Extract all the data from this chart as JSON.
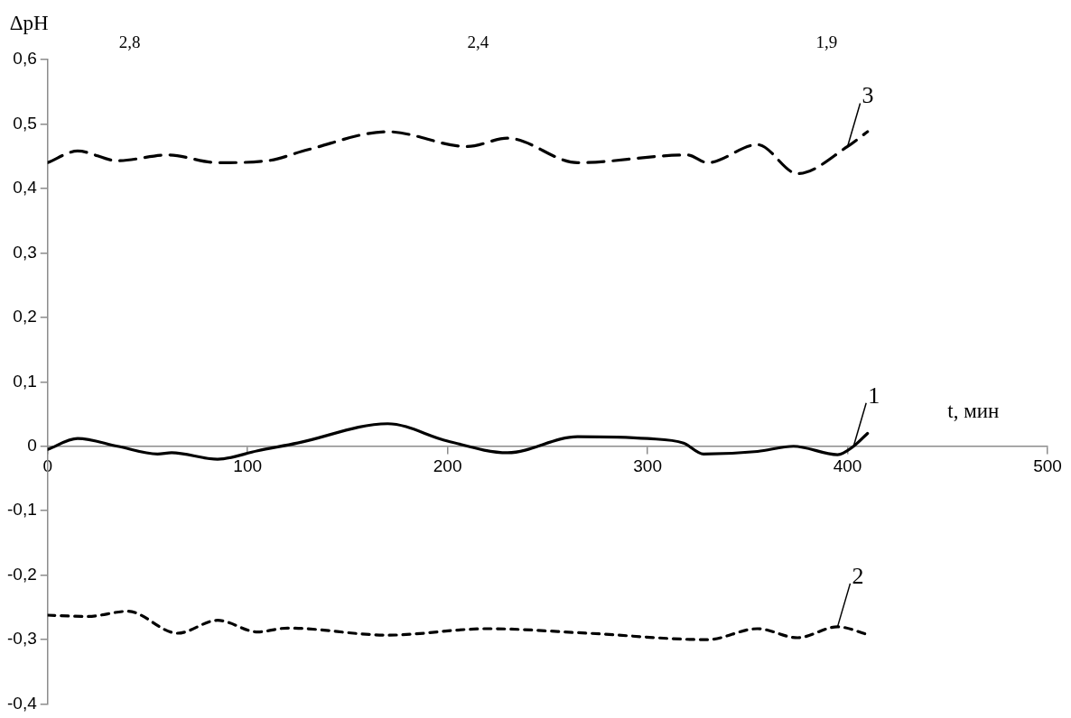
{
  "chart_data": {
    "type": "line",
    "xlabel": "t, мин",
    "ylabel": "ΔpH",
    "xlim": [
      0,
      500
    ],
    "xticks": [
      0,
      100,
      200,
      300,
      400,
      500
    ],
    "ylim": [
      -0.4,
      0.6
    ],
    "yticks": [
      {
        "value": -0.4,
        "label": "-0,4"
      },
      {
        "value": -0.3,
        "label": "-0,3"
      },
      {
        "value": -0.2,
        "label": "-0,2"
      },
      {
        "value": -0.1,
        "label": "-0,1"
      },
      {
        "value": 0,
        "label": "0"
      },
      {
        "value": 0.1,
        "label": "0,1"
      },
      {
        "value": 0.2,
        "label": "0,2"
      },
      {
        "value": 0.3,
        "label": "0,3"
      },
      {
        "value": 0.4,
        "label": "0,4"
      },
      {
        "value": 0.5,
        "label": "0,5"
      },
      {
        "value": 0.6,
        "label": "0,6"
      }
    ],
    "annotations": [
      "2,8",
      "2,4",
      "1,9"
    ],
    "grid": false,
    "legend": false,
    "marker": "none",
    "series": [
      {
        "name": "1",
        "color": "#000000",
        "line_style": "solid",
        "x": [
          0,
          15,
          35,
          55,
          62,
          85,
          105,
          125,
          170,
          200,
          230,
          265,
          300,
          318,
          328,
          355,
          373,
          395,
          403,
          410
        ],
        "values": [
          -0.005,
          0.012,
          0,
          -0.012,
          -0.01,
          -0.02,
          -0.007,
          0.005,
          0.035,
          0.008,
          -0.01,
          0.015,
          0.012,
          0.005,
          -0.012,
          -0.008,
          0,
          -0.013,
          0,
          0.02
        ]
      },
      {
        "name": "2",
        "color": "#000000",
        "line_style": "dotted",
        "x": [
          0,
          20,
          40,
          65,
          85,
          105,
          120,
          170,
          220,
          270,
          330,
          355,
          375,
          395,
          410
        ],
        "values": [
          -0.262,
          -0.264,
          -0.256,
          -0.29,
          -0.27,
          -0.288,
          -0.282,
          -0.293,
          -0.283,
          -0.29,
          -0.3,
          -0.283,
          -0.297,
          -0.28,
          -0.292
        ]
      },
      {
        "name": "3",
        "color": "#000000",
        "line_style": "dashed",
        "x": [
          0,
          15,
          35,
          60,
          85,
          110,
          130,
          170,
          210,
          230,
          265,
          320,
          330,
          355,
          375,
          400,
          410
        ],
        "values": [
          0.44,
          0.458,
          0.443,
          0.452,
          0.44,
          0.443,
          0.46,
          0.488,
          0.465,
          0.478,
          0.44,
          0.452,
          0.44,
          0.468,
          0.423,
          0.465,
          0.488
        ]
      }
    ]
  }
}
